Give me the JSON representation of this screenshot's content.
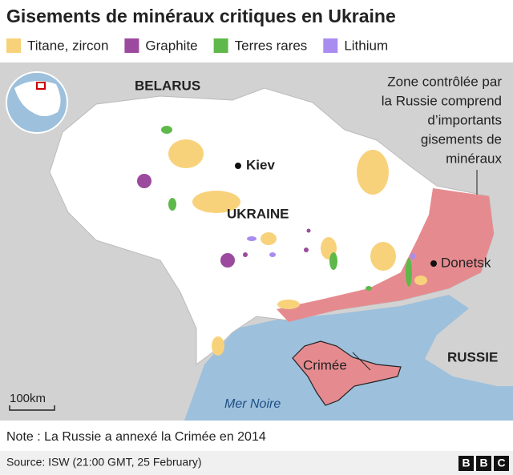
{
  "header": {
    "title": "Gisements de minéraux critiques en Ukraine"
  },
  "legend": [
    {
      "name": "Titane, zircon",
      "color": "#f8d27a"
    },
    {
      "name": "Graphite",
      "color": "#9b4a9e"
    },
    {
      "name": "Terres rares",
      "color": "#5fb94a"
    },
    {
      "name": "Lithium",
      "color": "#a98cf0"
    }
  ],
  "map": {
    "labels": {
      "belarus": "BELARUS",
      "ukraine": "UKRAINE",
      "kiev": "Kiev",
      "donetsk": "Donetsk",
      "russia": "RUSSIE",
      "crimea": "Crimée",
      "sea": "Mer Noire",
      "scale": "100km"
    },
    "annotation": [
      "Zone contrôlée par",
      "la Russie comprend",
      "d’importants",
      "gisements de",
      "minéraux"
    ]
  },
  "footer": {
    "note": "Note : La Russie a annexé la Crimée en 2014",
    "source": "Source: ISW (21:00 GMT, 25 February)",
    "logo": [
      "B",
      "B",
      "C"
    ]
  }
}
